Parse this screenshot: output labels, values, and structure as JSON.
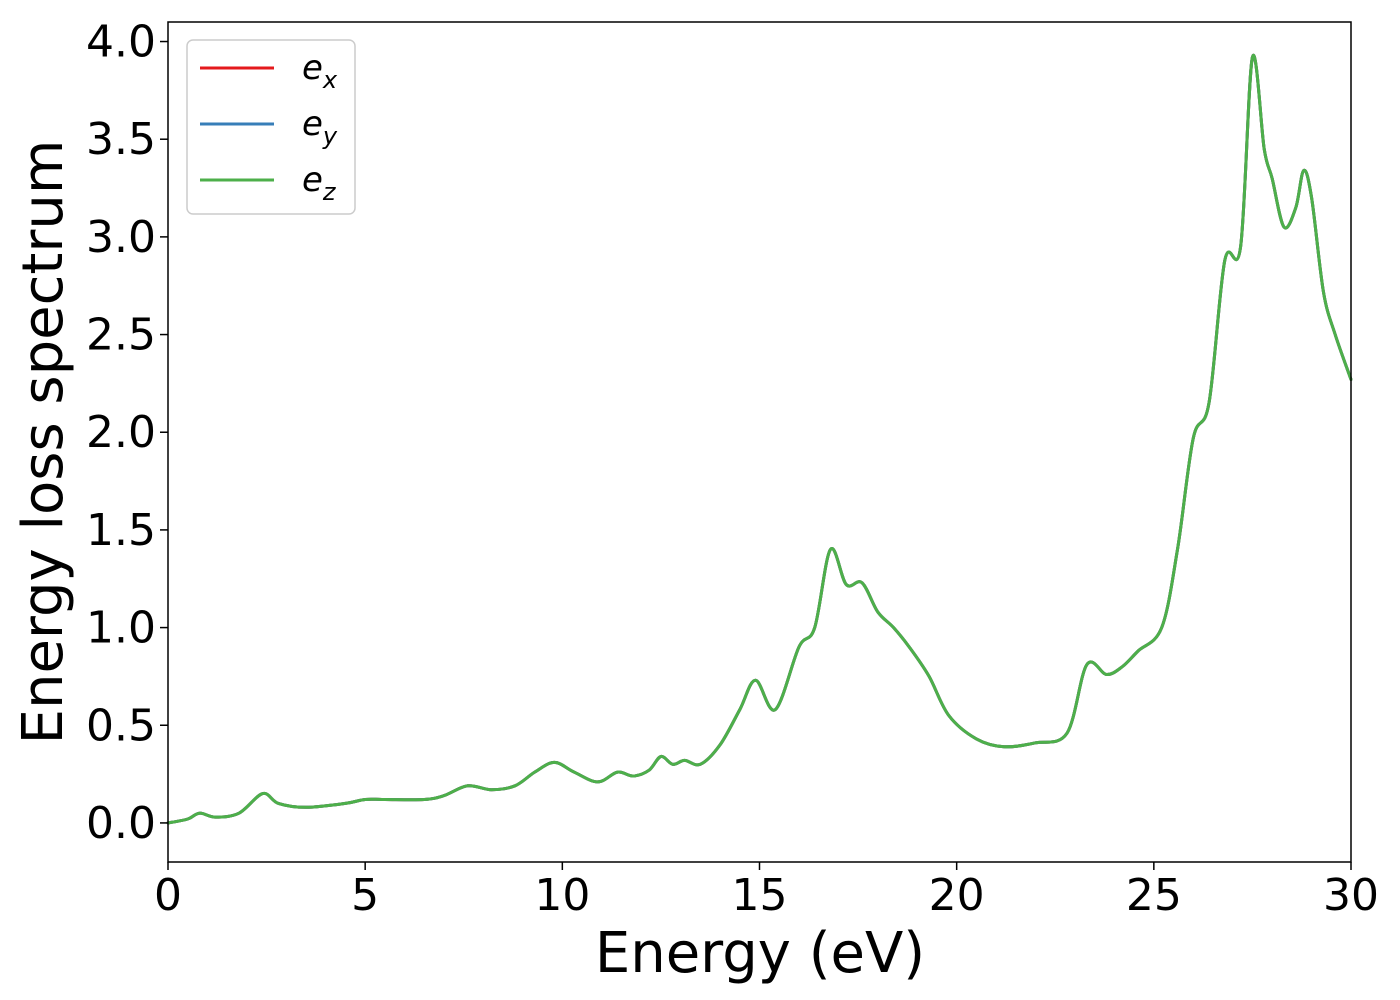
{
  "chart_data": {
    "type": "line",
    "title": "",
    "xlabel": "Energy (eV)",
    "ylabel": "Energy loss spectrum",
    "xlim": [
      0,
      30
    ],
    "ylim": [
      -0.2,
      4.1
    ],
    "xticks": [
      0,
      5,
      10,
      15,
      20,
      25,
      30
    ],
    "xtick_labels": [
      "0",
      "5",
      "10",
      "15",
      "20",
      "25",
      "30"
    ],
    "yticks": [
      0.0,
      0.5,
      1.0,
      1.5,
      2.0,
      2.5,
      3.0,
      3.5,
      4.0
    ],
    "ytick_labels": [
      "0.0",
      "0.5",
      "1.0",
      "1.5",
      "2.0",
      "2.5",
      "3.0",
      "3.5",
      "4.0"
    ],
    "grid": false,
    "legend_position": "top-left",
    "series": [
      {
        "name": "e_x",
        "legend_base": "e",
        "legend_sub": "x",
        "color": "#e41a1c",
        "x": [
          0,
          0.5,
          0.8,
          1.2,
          1.8,
          2.4,
          2.8,
          3.5,
          4.5,
          5.0,
          5.5,
          6.5,
          7.0,
          7.6,
          8.2,
          8.8,
          9.3,
          9.8,
          10.3,
          10.9,
          11.4,
          11.8,
          12.2,
          12.5,
          12.8,
          13.1,
          13.5,
          14.0,
          14.5,
          14.9,
          15.4,
          16.0,
          16.4,
          16.8,
          17.2,
          17.6,
          18.0,
          18.4,
          18.8,
          19.3,
          19.8,
          20.5,
          21.2,
          22.0,
          22.8,
          23.3,
          23.8,
          24.2,
          24.6,
          25.2,
          25.6,
          26.0,
          26.4,
          26.8,
          27.2,
          27.5,
          27.8,
          28.0,
          28.3,
          28.6,
          28.8,
          29.0,
          29.3,
          29.6,
          30.0
        ],
        "y": [
          0.0,
          0.02,
          0.05,
          0.03,
          0.05,
          0.15,
          0.1,
          0.08,
          0.1,
          0.12,
          0.12,
          0.12,
          0.14,
          0.19,
          0.17,
          0.19,
          0.26,
          0.31,
          0.26,
          0.21,
          0.26,
          0.24,
          0.27,
          0.34,
          0.3,
          0.32,
          0.3,
          0.4,
          0.58,
          0.73,
          0.58,
          0.9,
          1.0,
          1.4,
          1.22,
          1.23,
          1.08,
          1.0,
          0.9,
          0.75,
          0.55,
          0.43,
          0.39,
          0.41,
          0.46,
          0.81,
          0.76,
          0.8,
          0.88,
          1.0,
          1.4,
          1.97,
          2.15,
          2.88,
          2.95,
          3.92,
          3.45,
          3.3,
          3.05,
          3.15,
          3.34,
          3.2,
          2.72,
          2.5,
          2.27
        ]
      },
      {
        "name": "e_y",
        "legend_base": "e",
        "legend_sub": "y",
        "color": "#377eb8",
        "x": [
          0,
          0.5,
          0.8,
          1.2,
          1.8,
          2.4,
          2.8,
          3.5,
          4.5,
          5.0,
          5.5,
          6.5,
          7.0,
          7.6,
          8.2,
          8.8,
          9.3,
          9.8,
          10.3,
          10.9,
          11.4,
          11.8,
          12.2,
          12.5,
          12.8,
          13.1,
          13.5,
          14.0,
          14.5,
          14.9,
          15.4,
          16.0,
          16.4,
          16.8,
          17.2,
          17.6,
          18.0,
          18.4,
          18.8,
          19.3,
          19.8,
          20.5,
          21.2,
          22.0,
          22.8,
          23.3,
          23.8,
          24.2,
          24.6,
          25.2,
          25.6,
          26.0,
          26.4,
          26.8,
          27.2,
          27.5,
          27.8,
          28.0,
          28.3,
          28.6,
          28.8,
          29.0,
          29.3,
          29.6,
          30.0
        ],
        "y": [
          0.0,
          0.02,
          0.05,
          0.03,
          0.05,
          0.15,
          0.1,
          0.08,
          0.1,
          0.12,
          0.12,
          0.12,
          0.14,
          0.19,
          0.17,
          0.19,
          0.26,
          0.31,
          0.26,
          0.21,
          0.26,
          0.24,
          0.27,
          0.34,
          0.3,
          0.32,
          0.3,
          0.4,
          0.58,
          0.73,
          0.58,
          0.9,
          1.0,
          1.4,
          1.22,
          1.23,
          1.08,
          1.0,
          0.9,
          0.75,
          0.55,
          0.43,
          0.39,
          0.41,
          0.46,
          0.81,
          0.76,
          0.8,
          0.88,
          1.0,
          1.4,
          1.97,
          2.15,
          2.88,
          2.95,
          3.92,
          3.45,
          3.3,
          3.05,
          3.15,
          3.34,
          3.2,
          2.72,
          2.5,
          2.27
        ]
      },
      {
        "name": "e_z",
        "legend_base": "e",
        "legend_sub": "z",
        "color": "#4daf4a",
        "x": [
          0,
          0.5,
          0.8,
          1.2,
          1.8,
          2.4,
          2.8,
          3.5,
          4.5,
          5.0,
          5.5,
          6.5,
          7.0,
          7.6,
          8.2,
          8.8,
          9.3,
          9.8,
          10.3,
          10.9,
          11.4,
          11.8,
          12.2,
          12.5,
          12.8,
          13.1,
          13.5,
          14.0,
          14.5,
          14.9,
          15.4,
          16.0,
          16.4,
          16.8,
          17.2,
          17.6,
          18.0,
          18.4,
          18.8,
          19.3,
          19.8,
          20.5,
          21.2,
          22.0,
          22.8,
          23.3,
          23.8,
          24.2,
          24.6,
          25.2,
          25.6,
          26.0,
          26.4,
          26.8,
          27.2,
          27.5,
          27.8,
          28.0,
          28.3,
          28.6,
          28.8,
          29.0,
          29.3,
          29.6,
          30.0
        ],
        "y": [
          0.0,
          0.02,
          0.05,
          0.03,
          0.05,
          0.15,
          0.1,
          0.08,
          0.1,
          0.12,
          0.12,
          0.12,
          0.14,
          0.19,
          0.17,
          0.19,
          0.26,
          0.31,
          0.26,
          0.21,
          0.26,
          0.24,
          0.27,
          0.34,
          0.3,
          0.32,
          0.3,
          0.4,
          0.58,
          0.73,
          0.58,
          0.9,
          1.0,
          1.4,
          1.22,
          1.23,
          1.08,
          1.0,
          0.9,
          0.75,
          0.55,
          0.43,
          0.39,
          0.41,
          0.46,
          0.81,
          0.76,
          0.8,
          0.88,
          1.0,
          1.4,
          1.97,
          2.15,
          2.88,
          2.95,
          3.92,
          3.45,
          3.3,
          3.05,
          3.15,
          3.34,
          3.2,
          2.72,
          2.5,
          2.27
        ]
      }
    ]
  }
}
